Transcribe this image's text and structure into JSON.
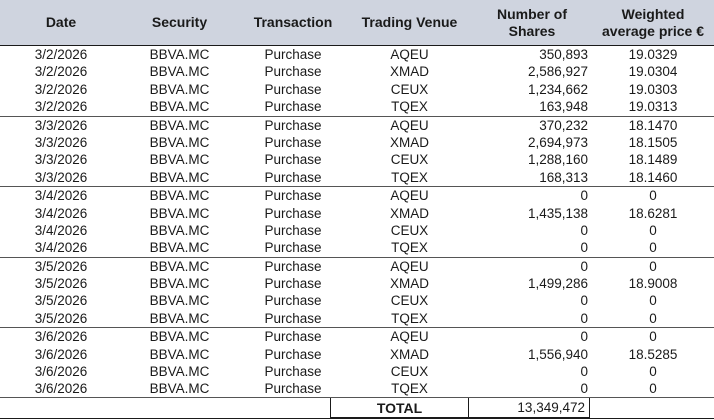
{
  "headers": {
    "date": "Date",
    "security": "Security",
    "transaction": "Transaction",
    "venue": "Trading Venue",
    "shares_l1": "Number of",
    "shares_l2": "Shares",
    "price_l1": "Weighted",
    "price_l2": "average price €"
  },
  "rows": [
    {
      "date": "3/2/2026",
      "security": "BBVA.MC",
      "transaction": "Purchase",
      "venue": "AQEU",
      "shares": "350,893",
      "price": "19.0329"
    },
    {
      "date": "3/2/2026",
      "security": "BBVA.MC",
      "transaction": "Purchase",
      "venue": "XMAD",
      "shares": "2,586,927",
      "price": "19.0304"
    },
    {
      "date": "3/2/2026",
      "security": "BBVA.MC",
      "transaction": "Purchase",
      "venue": "CEUX",
      "shares": "1,234,662",
      "price": "19.0303"
    },
    {
      "date": "3/2/2026",
      "security": "BBVA.MC",
      "transaction": "Purchase",
      "venue": "TQEX",
      "shares": "163,948",
      "price": "19.0313"
    },
    {
      "date": "3/3/2026",
      "security": "BBVA.MC",
      "transaction": "Purchase",
      "venue": "AQEU",
      "shares": "370,232",
      "price": "18.1470"
    },
    {
      "date": "3/3/2026",
      "security": "BBVA.MC",
      "transaction": "Purchase",
      "venue": "XMAD",
      "shares": "2,694,973",
      "price": "18.1505"
    },
    {
      "date": "3/3/2026",
      "security": "BBVA.MC",
      "transaction": "Purchase",
      "venue": "CEUX",
      "shares": "1,288,160",
      "price": "18.1489"
    },
    {
      "date": "3/3/2026",
      "security": "BBVA.MC",
      "transaction": "Purchase",
      "venue": "TQEX",
      "shares": "168,313",
      "price": "18.1460"
    },
    {
      "date": "3/4/2026",
      "security": "BBVA.MC",
      "transaction": "Purchase",
      "venue": "AQEU",
      "shares": "0",
      "price": "0"
    },
    {
      "date": "3/4/2026",
      "security": "BBVA.MC",
      "transaction": "Purchase",
      "venue": "XMAD",
      "shares": "1,435,138",
      "price": "18.6281"
    },
    {
      "date": "3/4/2026",
      "security": "BBVA.MC",
      "transaction": "Purchase",
      "venue": "CEUX",
      "shares": "0",
      "price": "0"
    },
    {
      "date": "3/4/2026",
      "security": "BBVA.MC",
      "transaction": "Purchase",
      "venue": "TQEX",
      "shares": "0",
      "price": "0"
    },
    {
      "date": "3/5/2026",
      "security": "BBVA.MC",
      "transaction": "Purchase",
      "venue": "AQEU",
      "shares": "0",
      "price": "0"
    },
    {
      "date": "3/5/2026",
      "security": "BBVA.MC",
      "transaction": "Purchase",
      "venue": "XMAD",
      "shares": "1,499,286",
      "price": "18.9008"
    },
    {
      "date": "3/5/2026",
      "security": "BBVA.MC",
      "transaction": "Purchase",
      "venue": "CEUX",
      "shares": "0",
      "price": "0"
    },
    {
      "date": "3/5/2026",
      "security": "BBVA.MC",
      "transaction": "Purchase",
      "venue": "TQEX",
      "shares": "0",
      "price": "0"
    },
    {
      "date": "3/6/2026",
      "security": "BBVA.MC",
      "transaction": "Purchase",
      "venue": "AQEU",
      "shares": "0",
      "price": "0"
    },
    {
      "date": "3/6/2026",
      "security": "BBVA.MC",
      "transaction": "Purchase",
      "venue": "XMAD",
      "shares": "1,556,940",
      "price": "18.5285"
    },
    {
      "date": "3/6/2026",
      "security": "BBVA.MC",
      "transaction": "Purchase",
      "venue": "CEUX",
      "shares": "0",
      "price": "0"
    },
    {
      "date": "3/6/2026",
      "security": "BBVA.MC",
      "transaction": "Purchase",
      "venue": "TQEX",
      "shares": "0",
      "price": "0"
    }
  ],
  "total": {
    "label": "TOTAL",
    "value": "13,349,472"
  },
  "colors": {
    "header_bg": "#cfd4df",
    "text": "#1a1a1a",
    "separator": "#555555"
  }
}
